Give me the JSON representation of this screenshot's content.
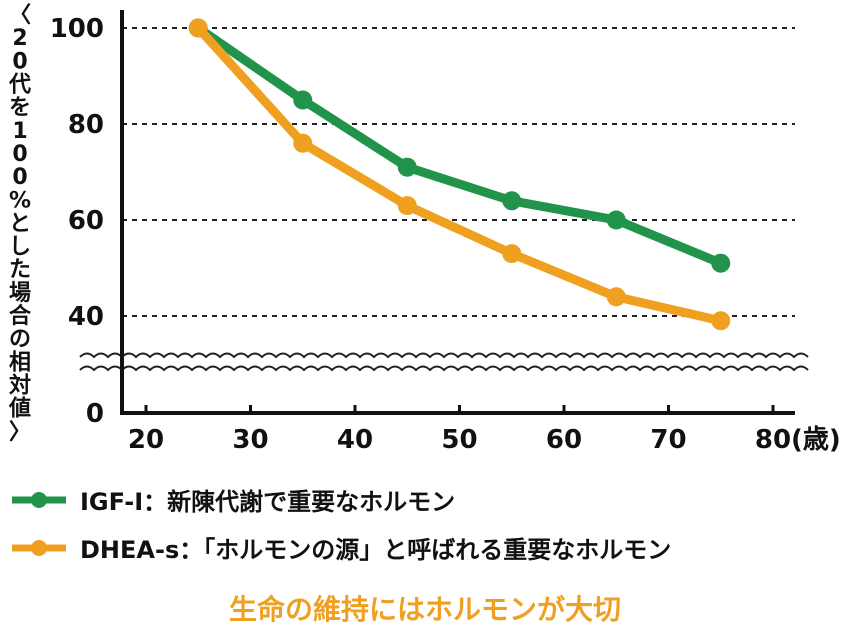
{
  "chart_data": {
    "type": "line",
    "x": [
      25,
      35,
      45,
      55,
      65,
      75
    ],
    "xticks": [
      "20",
      "30",
      "40",
      "50",
      "60",
      "70",
      "80"
    ],
    "xunit": "(歳)",
    "yticks": [
      "100",
      "80",
      "60",
      "40",
      "0"
    ],
    "ylabel": "〈20代を100%とした場合の相対値〉",
    "ylim": [
      0,
      100
    ],
    "axis_break": "between 0 and 40",
    "grid": "dashed horizontal at 40, 60, 80, 100",
    "legend_position": "bottom",
    "series": [
      {
        "name": "IGF-I：新陳代謝で重要なホルモン",
        "color": "#22934a",
        "values": [
          100,
          85,
          71,
          64,
          60,
          51
        ]
      },
      {
        "name": "DHEA-s：「ホルモンの源」と呼ばれる重要なホルモン",
        "color": "#f0a020",
        "values": [
          100,
          76,
          63,
          53,
          44,
          39
        ]
      }
    ]
  },
  "caption": "生命の維持にはホルモンが大切"
}
